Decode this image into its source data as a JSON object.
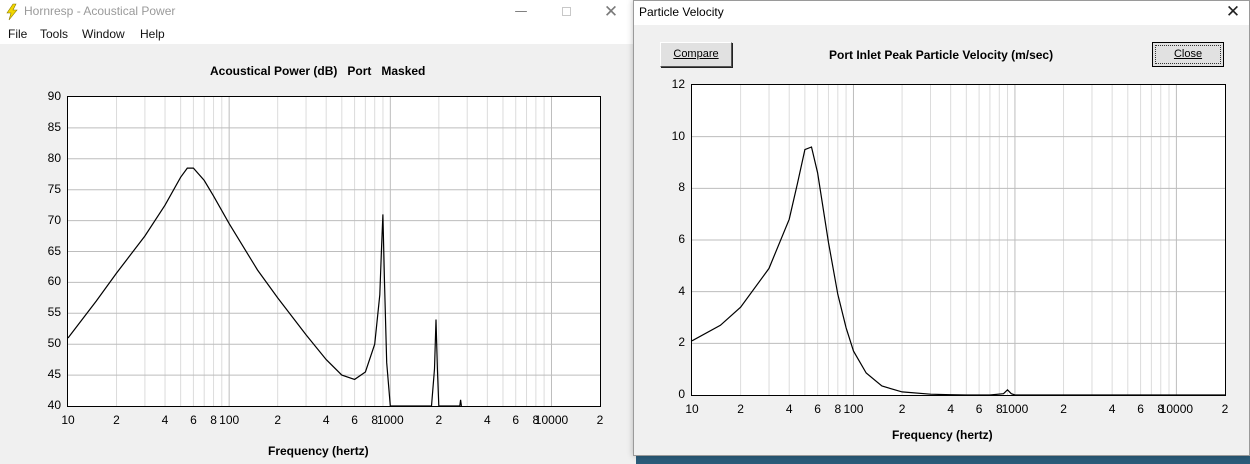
{
  "main_window": {
    "title": "Hornresp - Acoustical Power",
    "menu": [
      "File",
      "Tools",
      "Window",
      "Help"
    ],
    "chart_title": "Acoustical Power (dB)   Port   Masked",
    "xlabel": "Frequency (hertz)",
    "y_ticks": [
      "90",
      "85",
      "80",
      "75",
      "70",
      "65",
      "60",
      "55",
      "50",
      "45",
      "40"
    ],
    "x_ticks": [
      "10",
      "2",
      "4",
      "6",
      "8",
      "100",
      "2",
      "4",
      "6",
      "8",
      "1000",
      "2",
      "4",
      "6",
      "8",
      "10000",
      "2"
    ]
  },
  "velocity_window": {
    "title": "Particle Velocity",
    "compare_label": "Compare",
    "close_label": "Close",
    "chart_title": "Port Inlet Peak Particle Velocity (m/sec)",
    "xlabel": "Frequency (hertz)",
    "y_ticks": [
      "12",
      "10",
      "8",
      "6",
      "4",
      "2",
      "0"
    ],
    "x_ticks": [
      "10",
      "2",
      "4",
      "6",
      "8",
      "100",
      "2",
      "4",
      "6",
      "8",
      "1000",
      "2",
      "4",
      "6",
      "8",
      "10000",
      "2"
    ]
  },
  "chart_data": [
    {
      "type": "line",
      "title": "Acoustical Power (dB)   Port   Masked",
      "xlabel": "Frequency (hertz)",
      "ylabel": "",
      "x_scale": "log",
      "xlim": [
        10,
        20000
      ],
      "ylim": [
        40,
        90
      ],
      "grid": true,
      "series": [
        {
          "x": [
            10,
            15,
            20,
            30,
            40,
            50,
            55,
            60,
            70,
            80,
            100,
            150,
            200,
            300,
            400,
            500,
            600,
            700,
            800,
            860,
            880,
            900,
            920,
            950,
            1000,
            1200,
            1500,
            1800,
            1880,
            1920,
            1960,
            2000,
            2600,
            2700,
            2730,
            2760
          ],
          "y": [
            51,
            57,
            61.5,
            67.5,
            72.5,
            77,
            78.5,
            78.5,
            76.5,
            74,
            69.5,
            62,
            57.5,
            51.5,
            47.5,
            45,
            44.3,
            45.5,
            50,
            58,
            65,
            71,
            60,
            47,
            40,
            40,
            40,
            40,
            46,
            54,
            46,
            40,
            40,
            40,
            41,
            40
          ]
        }
      ]
    },
    {
      "type": "line",
      "title": "Port Inlet Peak Particle Velocity (m/sec)",
      "xlabel": "Frequency (hertz)",
      "ylabel": "",
      "x_scale": "log",
      "xlim": [
        10,
        20000
      ],
      "ylim": [
        0,
        12
      ],
      "grid": true,
      "series": [
        {
          "x": [
            10,
            15,
            20,
            30,
            40,
            45,
            50,
            55,
            60,
            70,
            80,
            90,
            100,
            120,
            150,
            200,
            300,
            400,
            500,
            700,
            850,
            900,
            950,
            1000,
            2000,
            10000,
            20000
          ],
          "y": [
            2.1,
            2.7,
            3.4,
            4.9,
            6.8,
            8.2,
            9.5,
            9.6,
            8.6,
            5.9,
            3.9,
            2.6,
            1.7,
            0.85,
            0.35,
            0.12,
            0.03,
            0.01,
            0,
            0,
            0.05,
            0.2,
            0.05,
            0,
            0,
            0,
            0
          ]
        }
      ]
    }
  ]
}
